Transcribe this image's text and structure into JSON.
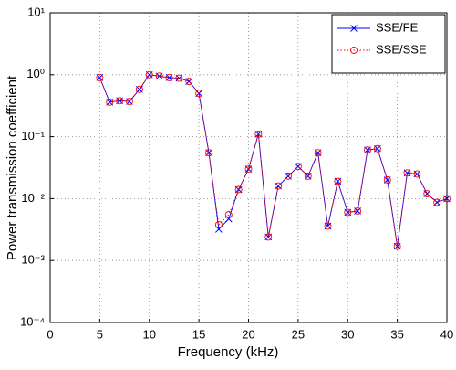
{
  "chart_data": {
    "type": "line",
    "xlabel": "Frequency (kHz)",
    "ylabel": "Power transmission coefficient",
    "x": [
      5,
      6,
      7,
      8,
      9,
      10,
      11,
      12,
      13,
      14,
      15,
      16,
      17,
      18,
      19,
      20,
      21,
      22,
      23,
      24,
      25,
      26,
      27,
      28,
      29,
      30,
      31,
      32,
      33,
      34,
      35,
      36,
      37,
      38,
      39,
      40
    ],
    "series": [
      {
        "name": "SSE/FE",
        "color": "#0000ff",
        "marker": "x",
        "line_style": "solid",
        "values": [
          0.9,
          0.36,
          0.38,
          0.37,
          0.58,
          1.0,
          0.95,
          0.9,
          0.88,
          0.78,
          0.5,
          0.055,
          0.0032,
          0.0047,
          0.014,
          0.03,
          0.11,
          0.0024,
          0.016,
          0.023,
          0.033,
          0.023,
          0.055,
          0.0036,
          0.019,
          0.006,
          0.0063,
          0.061,
          0.064,
          0.02,
          0.0017,
          0.026,
          0.025,
          0.012,
          0.0087,
          0.01
        ]
      },
      {
        "name": "SSE/SSE",
        "color": "#ff0000",
        "marker": "o",
        "line_style": "dotted",
        "values": [
          0.9,
          0.36,
          0.38,
          0.37,
          0.58,
          1.0,
          0.95,
          0.9,
          0.88,
          0.78,
          0.5,
          0.055,
          0.0038,
          0.0055,
          0.014,
          0.03,
          0.11,
          0.0024,
          0.016,
          0.023,
          0.033,
          0.023,
          0.055,
          0.0036,
          0.019,
          0.006,
          0.0063,
          0.061,
          0.064,
          0.02,
          0.0017,
          0.026,
          0.025,
          0.012,
          0.0087,
          0.01
        ]
      }
    ],
    "xlim": [
      0,
      40
    ],
    "xticks": [
      0,
      5,
      10,
      15,
      20,
      25,
      30,
      35,
      40
    ],
    "ylim": [
      0.0001,
      10
    ],
    "ylog": true,
    "yticks": [
      {
        "value": 0.0001,
        "label": "10⁻⁴"
      },
      {
        "value": 0.001,
        "label": "10⁻³"
      },
      {
        "value": 0.01,
        "label": "10⁻²"
      },
      {
        "value": 0.1,
        "label": "10⁻¹"
      },
      {
        "value": 1,
        "label": "10⁰"
      },
      {
        "value": 10,
        "label": "10¹"
      }
    ],
    "grid": true,
    "legend": "northeast"
  }
}
